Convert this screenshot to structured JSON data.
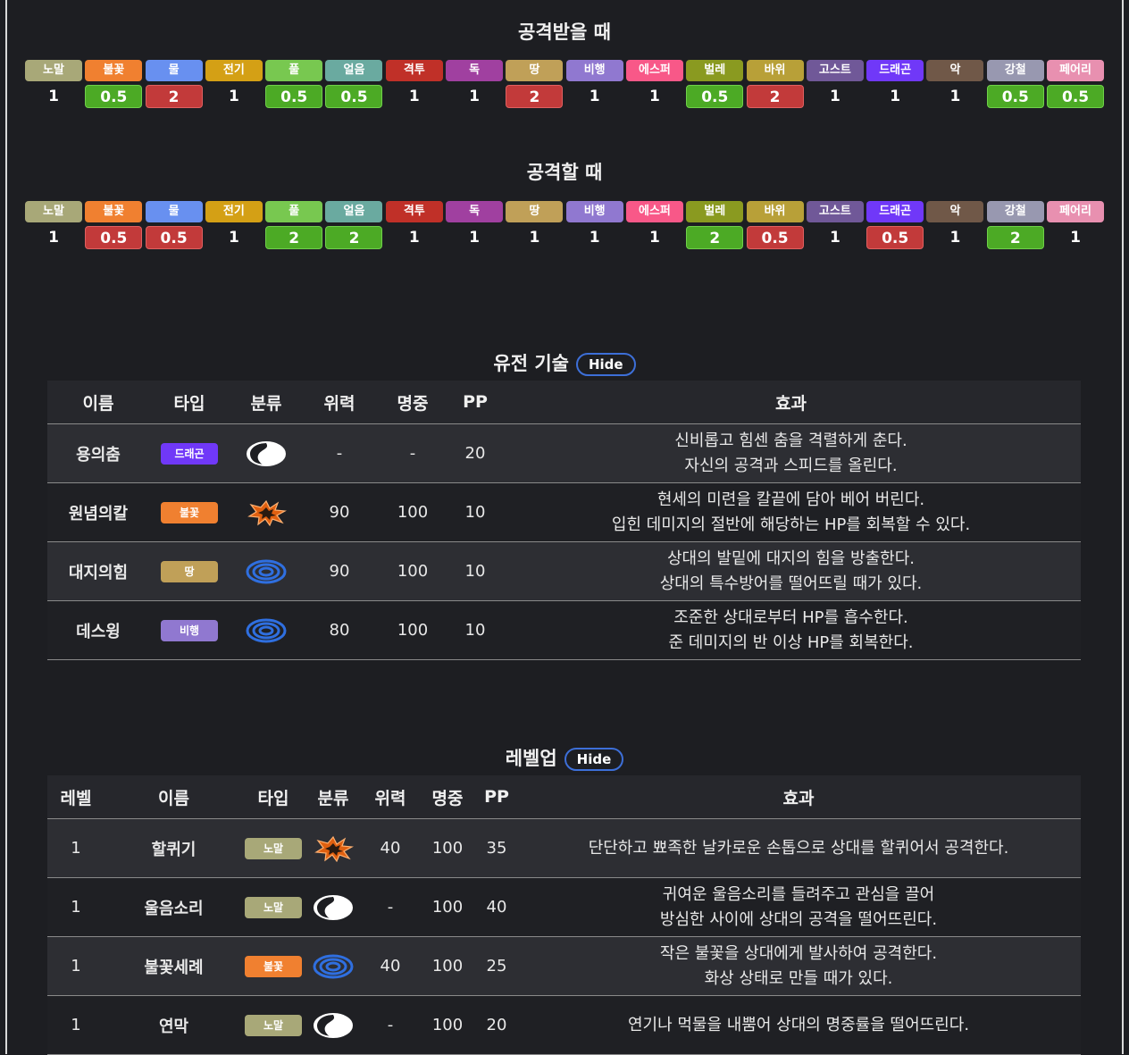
{
  "colors": {
    "노말": "#a8a878",
    "불꽃": "#f08030",
    "물": "#6890f0",
    "전기": "#d4a015",
    "풀": "#78c850",
    "얼음": "#6aaaa0",
    "격투": "#c03028",
    "독": "#a040a0",
    "땅": "#c0a058",
    "비행": "#9078d0",
    "에스퍼": "#f85888",
    "벌레": "#8a9a20",
    "바위": "#b8a038",
    "고스트": "#705898",
    "드래곤": "#7038f8",
    "악": "#705848",
    "강철": "#9898b0",
    "페어리": "#e890b0"
  },
  "defense": {
    "title": "공격받을 때",
    "types": [
      "노말",
      "불꽃",
      "물",
      "전기",
      "풀",
      "얼음",
      "격투",
      "독",
      "땅",
      "비행",
      "에스퍼",
      "벌레",
      "바위",
      "고스트",
      "드래곤",
      "악",
      "강철",
      "페어리"
    ],
    "values": [
      "1",
      "0.5",
      "2",
      "1",
      "0.5",
      "0.5",
      "1",
      "1",
      "2",
      "1",
      "1",
      "0.5",
      "2",
      "1",
      "1",
      "1",
      "0.5",
      "0.5"
    ],
    "classes": [
      "",
      "good",
      "bad",
      "",
      "good",
      "good",
      "",
      "",
      "bad",
      "",
      "",
      "good",
      "bad",
      "",
      "",
      "",
      "good",
      "good"
    ]
  },
  "offense": {
    "title": "공격할 때",
    "types": [
      "노말",
      "불꽃",
      "물",
      "전기",
      "풀",
      "얼음",
      "격투",
      "독",
      "땅",
      "비행",
      "에스퍼",
      "벌레",
      "바위",
      "고스트",
      "드래곤",
      "악",
      "강철",
      "페어리"
    ],
    "values": [
      "1",
      "0.5",
      "0.5",
      "1",
      "2",
      "2",
      "1",
      "1",
      "1",
      "1",
      "1",
      "2",
      "0.5",
      "1",
      "0.5",
      "1",
      "2",
      "1"
    ],
    "classes": [
      "",
      "bad",
      "bad",
      "",
      "good",
      "good",
      "",
      "",
      "",
      "",
      "",
      "good",
      "bad",
      "",
      "bad",
      "",
      "good",
      ""
    ]
  },
  "egg_moves": {
    "title": "유전 기술",
    "hide_label": "Hide",
    "headers": [
      "이름",
      "타입",
      "분류",
      "위력",
      "명중",
      "PP",
      "효과"
    ],
    "rows": [
      {
        "name": "용의춤",
        "type": "드래곤",
        "cat": "status",
        "power": "-",
        "acc": "-",
        "pp": "20",
        "effect": [
          "신비롭고 힘센 춤을 격렬하게 춘다.",
          "자신의 공격과 스피드를 올린다."
        ]
      },
      {
        "name": "원념의칼",
        "type": "불꽃",
        "cat": "physical",
        "power": "90",
        "acc": "100",
        "pp": "10",
        "effect": [
          "현세의 미련을 칼끝에 담아 베어 버린다.",
          "입힌 데미지의 절반에 해당하는 HP를 회복할 수 있다."
        ]
      },
      {
        "name": "대지의힘",
        "type": "땅",
        "cat": "special",
        "power": "90",
        "acc": "100",
        "pp": "10",
        "effect": [
          "상대의 발밑에 대지의 힘을 방출한다.",
          "상대의 특수방어를 떨어뜨릴 때가 있다."
        ]
      },
      {
        "name": "데스윙",
        "type": "비행",
        "cat": "special",
        "power": "80",
        "acc": "100",
        "pp": "10",
        "effect": [
          "조준한 상대로부터 HP를 흡수한다.",
          "준 데미지의 반 이상 HP를 회복한다."
        ]
      }
    ]
  },
  "level_moves": {
    "title": "레벨업",
    "hide_label": "Hide",
    "headers": [
      "레벨",
      "이름",
      "타입",
      "분류",
      "위력",
      "명중",
      "PP",
      "효과"
    ],
    "rows": [
      {
        "level": "1",
        "name": "할퀴기",
        "type": "노말",
        "cat": "physical",
        "power": "40",
        "acc": "100",
        "pp": "35",
        "effect": [
          "단단하고 뾰족한 날카로운 손톱으로 상대를 할퀴어서 공격한다."
        ]
      },
      {
        "level": "1",
        "name": "울음소리",
        "type": "노말",
        "cat": "status",
        "power": "-",
        "acc": "100",
        "pp": "40",
        "effect": [
          "귀여운 울음소리를 들려주고 관심을 끌어",
          "방심한 사이에 상대의 공격을 떨어뜨린다."
        ]
      },
      {
        "level": "1",
        "name": "불꽃세례",
        "type": "불꽃",
        "cat": "special",
        "power": "40",
        "acc": "100",
        "pp": "25",
        "effect": [
          "작은 불꽃을 상대에게 발사하여 공격한다.",
          "화상 상태로 만들 때가 있다."
        ]
      },
      {
        "level": "1",
        "name": "연막",
        "type": "노말",
        "cat": "status",
        "power": "-",
        "acc": "100",
        "pp": "20",
        "effect": [
          "연기나 먹물을 내뿜어 상대의 명중률을 떨어뜨린다."
        ]
      }
    ]
  }
}
